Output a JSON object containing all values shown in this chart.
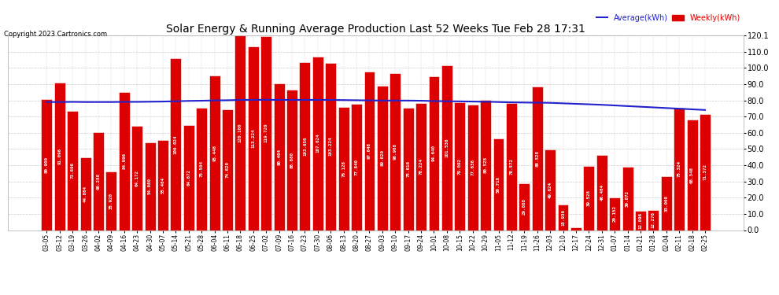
{
  "title": "Solar Energy & Running Average Production Last 52 Weeks Tue Feb 28 17:31",
  "copyright": "Copyright 2023 Cartronics.com",
  "legend_avg": "Average(kWh)",
  "legend_weekly": "Weekly(kWh)",
  "ylim": [
    0,
    120.1
  ],
  "yticks": [
    0.0,
    10.0,
    20.0,
    30.0,
    40.0,
    50.0,
    60.0,
    70.0,
    80.0,
    90.0,
    100.0,
    110.0,
    120.1
  ],
  "bar_color": "#dd0000",
  "avg_line_color": "#2222cc",
  "background_color": "#ffffff",
  "grid_color": "#cccccc",
  "categories": [
    "03-05",
    "03-12",
    "03-19",
    "03-26",
    "04-02",
    "04-09",
    "04-16",
    "04-23",
    "04-30",
    "05-07",
    "05-14",
    "05-21",
    "05-28",
    "06-04",
    "06-11",
    "06-18",
    "06-25",
    "07-02",
    "07-09",
    "07-16",
    "07-23",
    "07-30",
    "08-06",
    "08-13",
    "08-20",
    "08-27",
    "09-03",
    "09-10",
    "09-17",
    "09-24",
    "10-01",
    "10-08",
    "10-15",
    "10-22",
    "10-29",
    "11-05",
    "11-12",
    "11-19",
    "11-26",
    "12-03",
    "12-10",
    "12-17",
    "12-24",
    "12-31",
    "01-07",
    "01-14",
    "01-21",
    "01-28",
    "02-04",
    "02-11",
    "02-18",
    "02-25"
  ],
  "values": [
    80.9,
    91.096,
    73.696,
    44.864,
    60.288,
    35.92,
    84.996,
    64.172,
    54.08,
    55.464,
    106.024,
    64.672,
    75.504,
    95.448,
    74.62,
    120.1,
    113.224,
    119.72,
    90.464,
    86.68,
    103.656,
    107.024,
    103.224,
    76.128,
    77.84,
    97.648,
    89.02,
    96.908,
    75.616,
    78.224,
    94.64,
    101.536,
    79.092,
    77.636,
    80.528,
    56.716,
    78.572,
    29.088,
    88.528,
    49.624,
    15.936,
    1.928,
    39.528,
    46.464,
    20.152,
    39.072,
    12.096,
    12.276,
    33.008,
    75.324,
    68.348,
    71.372
  ],
  "avg_values": [
    79.0,
    79.0,
    79.1,
    79.0,
    79.0,
    79.0,
    79.1,
    79.1,
    79.2,
    79.3,
    79.5,
    79.7,
    79.8,
    80.0,
    80.1,
    80.3,
    80.3,
    80.4,
    80.3,
    80.3,
    80.3,
    80.3,
    80.3,
    80.2,
    80.1,
    80.0,
    79.9,
    79.9,
    79.9,
    79.8,
    79.6,
    79.5,
    79.4,
    79.3,
    79.2,
    79.0,
    78.8,
    78.7,
    78.6,
    78.5,
    78.2,
    77.9,
    77.6,
    77.3,
    76.9,
    76.5,
    76.1,
    75.7,
    75.3,
    74.9,
    74.5,
    74.1
  ]
}
